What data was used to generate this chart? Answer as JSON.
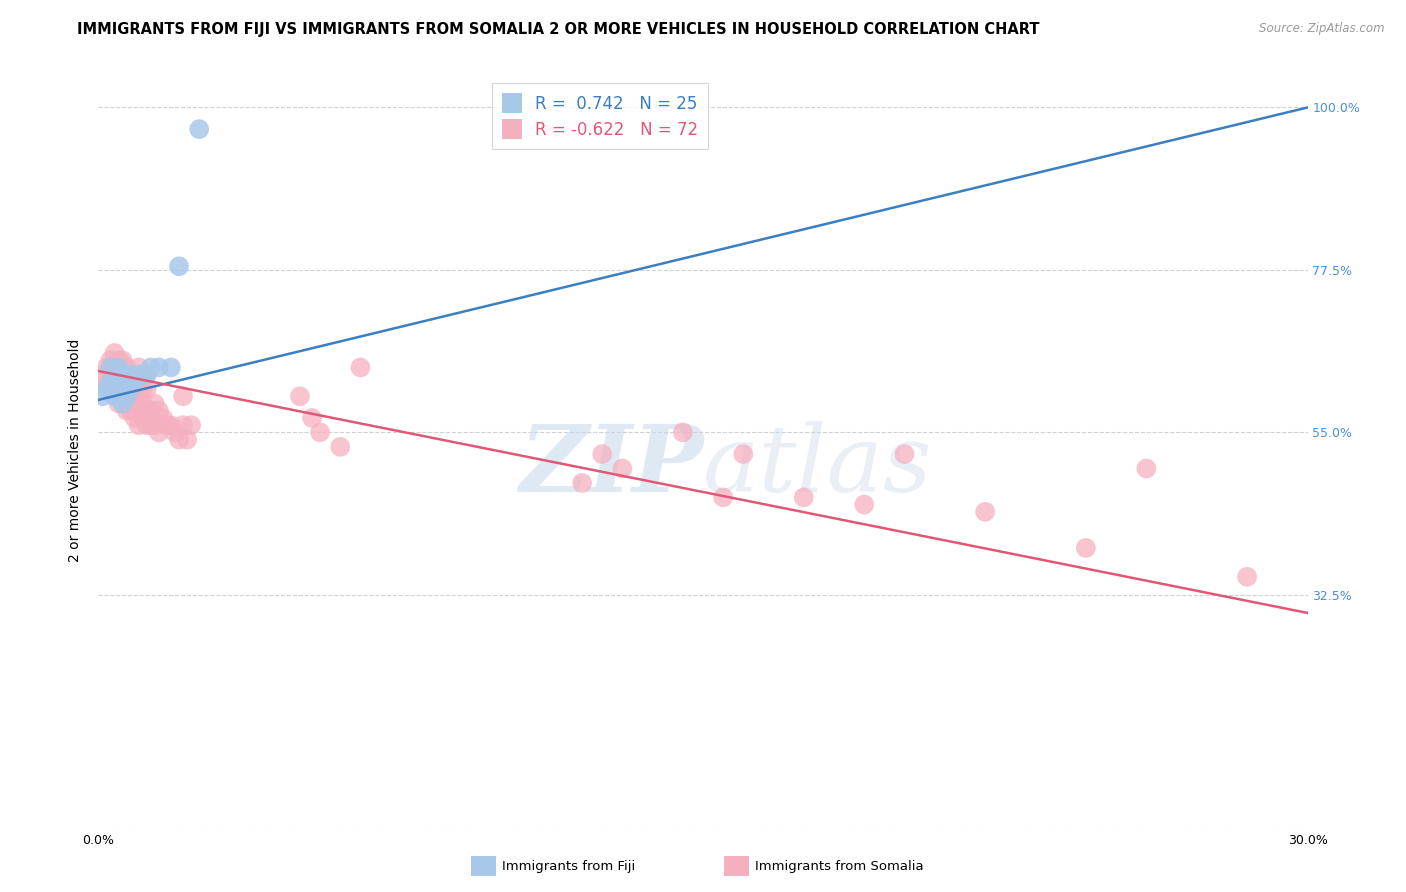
{
  "title": "IMMIGRANTS FROM FIJI VS IMMIGRANTS FROM SOMALIA 2 OR MORE VEHICLES IN HOUSEHOLD CORRELATION CHART",
  "source": "Source: ZipAtlas.com",
  "ylabel": "2 or more Vehicles in Household",
  "xlim": [
    0.0,
    0.3
  ],
  "ylim": [
    0.0,
    1.05
  ],
  "x_ticks": [
    0.0,
    0.05,
    0.1,
    0.15,
    0.2,
    0.25,
    0.3
  ],
  "x_tick_labels": [
    "0.0%",
    "",
    "",
    "",
    "",
    "",
    "30.0%"
  ],
  "y_ticks": [
    0.0,
    0.325,
    0.55,
    0.775,
    1.0
  ],
  "y_tick_labels_right": [
    "",
    "32.5%",
    "55.0%",
    "77.5%",
    "100.0%"
  ],
  "fiji_color": "#a8c8ea",
  "somalia_color": "#f5b0c0",
  "fiji_line_color": "#3a7fc1",
  "somalia_line_color": "#e05878",
  "fiji_R": 0.742,
  "fiji_N": 25,
  "somalia_R": -0.622,
  "somalia_N": 72,
  "fiji_scatter_x": [
    0.001,
    0.002,
    0.003,
    0.003,
    0.004,
    0.004,
    0.005,
    0.005,
    0.005,
    0.006,
    0.006,
    0.006,
    0.007,
    0.007,
    0.008,
    0.008,
    0.009,
    0.01,
    0.011,
    0.012,
    0.013,
    0.015,
    0.018,
    0.02,
    0.025
  ],
  "fiji_scatter_y": [
    0.6,
    0.61,
    0.62,
    0.64,
    0.6,
    0.63,
    0.6,
    0.62,
    0.64,
    0.59,
    0.61,
    0.63,
    0.6,
    0.62,
    0.61,
    0.63,
    0.62,
    0.63,
    0.63,
    0.63,
    0.64,
    0.64,
    0.64,
    0.78,
    0.97
  ],
  "somalia_scatter_x": [
    0.001,
    0.002,
    0.002,
    0.003,
    0.003,
    0.003,
    0.004,
    0.004,
    0.004,
    0.004,
    0.005,
    0.005,
    0.005,
    0.005,
    0.006,
    0.006,
    0.006,
    0.006,
    0.007,
    0.007,
    0.007,
    0.007,
    0.008,
    0.008,
    0.008,
    0.009,
    0.009,
    0.009,
    0.01,
    0.01,
    0.01,
    0.01,
    0.011,
    0.011,
    0.011,
    0.012,
    0.012,
    0.012,
    0.012,
    0.013,
    0.013,
    0.014,
    0.014,
    0.015,
    0.015,
    0.016,
    0.017,
    0.018,
    0.019,
    0.02,
    0.021,
    0.021,
    0.022,
    0.023,
    0.05,
    0.053,
    0.055,
    0.06,
    0.065,
    0.12,
    0.125,
    0.13,
    0.145,
    0.155,
    0.16,
    0.175,
    0.19,
    0.2,
    0.22,
    0.245,
    0.26,
    0.285
  ],
  "somalia_scatter_y": [
    0.63,
    0.62,
    0.64,
    0.61,
    0.63,
    0.65,
    0.6,
    0.62,
    0.64,
    0.66,
    0.59,
    0.61,
    0.63,
    0.65,
    0.59,
    0.61,
    0.63,
    0.65,
    0.58,
    0.6,
    0.62,
    0.64,
    0.58,
    0.6,
    0.63,
    0.57,
    0.59,
    0.62,
    0.56,
    0.59,
    0.61,
    0.64,
    0.57,
    0.59,
    0.61,
    0.56,
    0.58,
    0.61,
    0.63,
    0.56,
    0.58,
    0.56,
    0.59,
    0.55,
    0.58,
    0.57,
    0.56,
    0.56,
    0.55,
    0.54,
    0.56,
    0.6,
    0.54,
    0.56,
    0.6,
    0.57,
    0.55,
    0.53,
    0.64,
    0.48,
    0.52,
    0.5,
    0.55,
    0.46,
    0.52,
    0.46,
    0.45,
    0.52,
    0.44,
    0.39,
    0.5,
    0.35
  ],
  "watermark_zip": "ZIP",
  "watermark_atlas": "atlas",
  "background_color": "#ffffff",
  "grid_color": "#d0d0d0",
  "title_fontsize": 10.5,
  "axis_label_fontsize": 10,
  "tick_label_fontsize": 9,
  "legend_fontsize": 12
}
